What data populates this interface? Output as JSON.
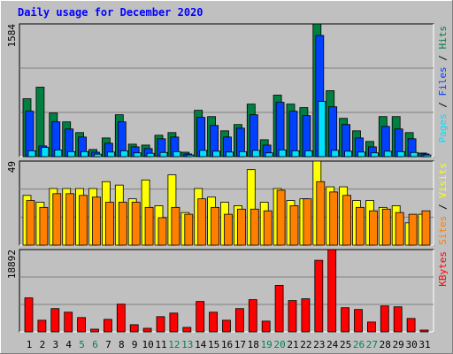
{
  "chart_data": [
    {
      "type": "bar",
      "title": "Daily usage for December 2020",
      "ylim": [
        0,
        1584
      ],
      "yticks": [
        1584
      ],
      "series": [
        {
          "name": "Hits",
          "color": "#008040",
          "values": [
            691,
            829,
            521,
            415,
            287,
            85,
            223,
            500,
            149,
            138,
            255,
            287,
            53,
            553,
            478,
            308,
            383,
            627,
            202,
            734,
            627,
            585,
            1584,
            787,
            457,
            308,
            181,
            478,
            478,
            287,
            43
          ]
        },
        {
          "name": "Files",
          "color": "#0040ff",
          "values": [
            542,
            128,
            415,
            330,
            234,
            53,
            160,
            415,
            117,
            96,
            213,
            234,
            32,
            468,
            372,
            234,
            340,
            500,
            138,
            649,
            542,
            489,
            1446,
            595,
            383,
            223,
            117,
            361,
            330,
            213,
            32
          ]
        },
        {
          "name": "Pages",
          "color": "#00e0ff",
          "values": [
            70,
            110,
            80,
            60,
            60,
            30,
            55,
            70,
            45,
            40,
            50,
            60,
            20,
            75,
            65,
            55,
            60,
            75,
            45,
            80,
            70,
            70,
            659,
            75,
            65,
            55,
            45,
            65,
            60,
            50,
            20
          ]
        }
      ]
    },
    {
      "type": "bar",
      "ylim": [
        0,
        49
      ],
      "yticks": [
        49
      ],
      "series": [
        {
          "name": "Visits",
          "color": "#ffff00",
          "values": [
            29,
            25,
            33,
            33,
            33,
            33,
            37,
            35,
            27,
            38,
            23,
            41,
            19,
            33,
            28,
            25,
            23,
            44,
            25,
            33,
            26,
            27,
            49,
            34,
            34,
            26,
            26,
            22,
            23,
            13,
            18
          ]
        },
        {
          "name": "Sites",
          "color": "#ff8000",
          "values": [
            26,
            22,
            30,
            30,
            29,
            28,
            25,
            25,
            25,
            22,
            16,
            22,
            18,
            27,
            22,
            18,
            21,
            21,
            20,
            32,
            23,
            27,
            37,
            31,
            29,
            22,
            20,
            21,
            19,
            18,
            20
          ]
        }
      ]
    },
    {
      "type": "bar",
      "ylim": [
        0,
        18892
      ],
      "yticks": [
        18892
      ],
      "categories": [
        "1",
        "2",
        "3",
        "4",
        "5",
        "6",
        "7",
        "8",
        "9",
        "10",
        "11",
        "12",
        "13",
        "14",
        "15",
        "16",
        "17",
        "18",
        "19",
        "20",
        "21",
        "22",
        "23",
        "24",
        "25",
        "26",
        "27",
        "28",
        "29",
        "30",
        "31"
      ],
      "category_colors": [
        "#000000",
        "#000000",
        "#000000",
        "#000000",
        "#00805c",
        "#00805c",
        "#000000",
        "#000000",
        "#000000",
        "#000000",
        "#000000",
        "#00805c",
        "#00805c",
        "#000000",
        "#000000",
        "#000000",
        "#000000",
        "#000000",
        "#00805c",
        "#00805c",
        "#000000",
        "#000000",
        "#000000",
        "#000000",
        "#000000",
        "#00805c",
        "#00805c",
        "#000000",
        "#000000",
        "#000000",
        "#000000"
      ],
      "series": [
        {
          "name": "KBytes",
          "color": "#ff0000",
          "values": [
            7803,
            2669,
            5339,
            4518,
            3286,
            616,
            2875,
            6366,
            1643,
            821,
            3491,
            4312,
            1027,
            6982,
            4518,
            2669,
            5339,
            7393,
            2464,
            10678,
            7187,
            7598,
            16428,
            18892,
            5544,
            5134,
            2259,
            5955,
            5750,
            3080,
            411
          ]
        }
      ]
    }
  ]
}
